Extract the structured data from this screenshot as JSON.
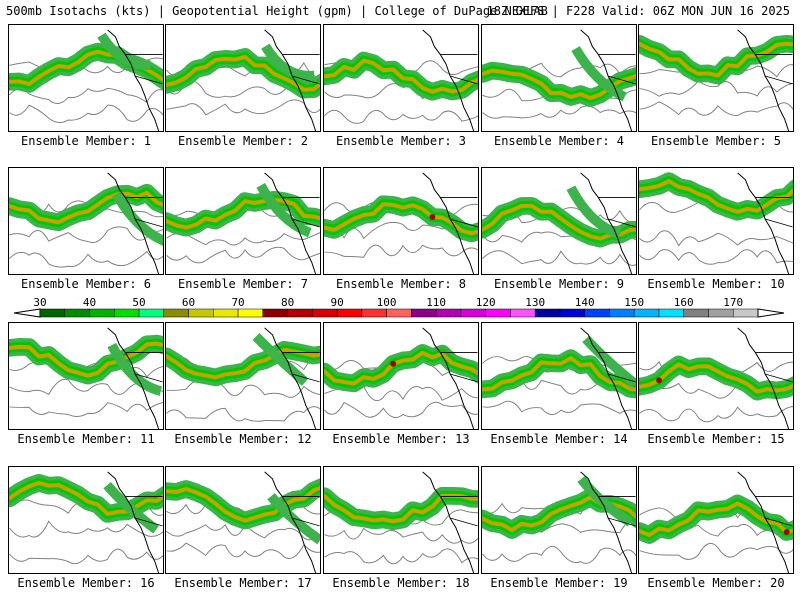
{
  "header": {
    "title_left": "500mb Isotachs (kts) | Geopotential Height (gpm) | College of DuPage NEXLAB",
    "title_right": "18Z GEFS | F228 Valid: 06Z MON JUN 16 2025"
  },
  "members": [
    "Ensemble Member: 1",
    "Ensemble Member: 2",
    "Ensemble Member: 3",
    "Ensemble Member: 4",
    "Ensemble Member: 5",
    "Ensemble Member: 6",
    "Ensemble Member: 7",
    "Ensemble Member: 8",
    "Ensemble Member: 9",
    "Ensemble Member: 10",
    "Ensemble Member: 11",
    "Ensemble Member: 12",
    "Ensemble Member: 13",
    "Ensemble Member: 14",
    "Ensemble Member: 15",
    "Ensemble Member: 16",
    "Ensemble Member: 17",
    "Ensemble Member: 18",
    "Ensemble Member: 19",
    "Ensemble Member: 20"
  ],
  "colorbar": {
    "labels": [
      "30",
      "40",
      "50",
      "60",
      "70",
      "80",
      "90",
      "100",
      "110",
      "120",
      "130",
      "140",
      "150",
      "160",
      "170"
    ],
    "colors": [
      "#006400",
      "#008c00",
      "#00b400",
      "#00e000",
      "#00ff80",
      "#8c8c00",
      "#c8c800",
      "#e8e800",
      "#ffff00",
      "#8c0000",
      "#b40000",
      "#d80000",
      "#ff0000",
      "#ff3030",
      "#ff6060",
      "#8c008c",
      "#b400b4",
      "#d800d8",
      "#ff00ff",
      "#ff50ff",
      "#0000a0",
      "#0000d8",
      "#0040ff",
      "#0080ff",
      "#00b4ff",
      "#00e0ff",
      "#808080",
      "#a0a0a0",
      "#c8c8c8"
    ]
  },
  "colors": {
    "jet_light": "#3cb44b",
    "jet_mid": "#00c800",
    "jet_core": "#c8a000",
    "jet_max": "#a00000",
    "height_contour": "#808080",
    "coastline": "#000000"
  }
}
